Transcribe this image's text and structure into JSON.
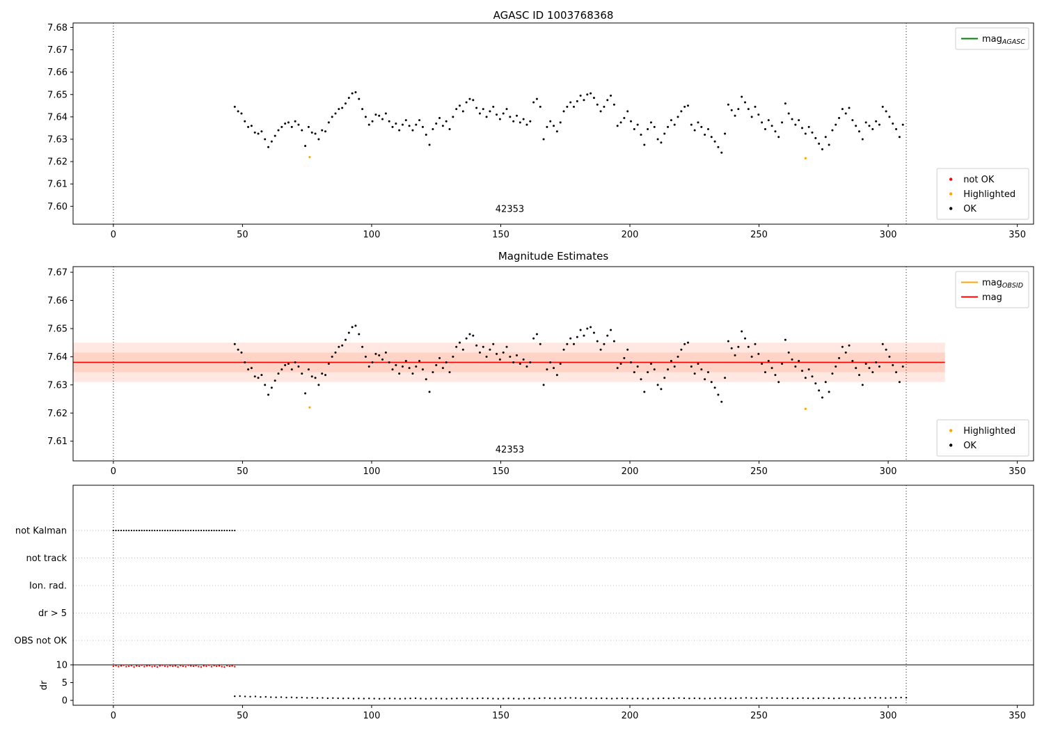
{
  "colors": {
    "ok": "#000000",
    "not_ok": "#ff0000",
    "highlighted": "#ffa500",
    "mag_agasc_line": "#008000",
    "mag_obsid_line": "#ffa500",
    "mag_line": "#ff0000",
    "band": "#ff7043",
    "vline": "#8b008b",
    "grid": "#bdbdbd"
  },
  "chart_data": [
    {
      "type": "scatter",
      "title": "AGASC ID 1003768368",
      "xlim": [
        -15.6,
        356.3
      ],
      "ylim": [
        7.592,
        7.682
      ],
      "xticks": [
        0,
        50,
        100,
        150,
        200,
        250,
        300,
        350
      ],
      "yticks": [
        "7.60",
        "7.61",
        "7.62",
        "7.63",
        "7.64",
        "7.65",
        "7.66",
        "7.67",
        "7.68"
      ],
      "vlines": [
        0,
        307
      ],
      "annotation": {
        "text": "42353",
        "x": 153.5,
        "y": 7.5975
      },
      "legend_upper": [
        {
          "marker": "line",
          "color_key": "mag_agasc_line",
          "label": "mag",
          "sub": "AGASC"
        }
      ],
      "legend_lower": [
        {
          "marker": "dot",
          "color_key": "not_ok",
          "label": "not OK"
        },
        {
          "marker": "dot",
          "color_key": "highlighted",
          "label": "Highlighted"
        },
        {
          "marker": "dot",
          "color_key": "ok",
          "label": "OK"
        }
      ],
      "series": {
        "name": "OK",
        "x_start": 47,
        "x_step": 1.3,
        "values": [
          7.6445,
          7.6425,
          7.6415,
          7.638,
          7.6355,
          7.636,
          7.633,
          7.6325,
          7.6335,
          7.63,
          7.6265,
          7.629,
          7.6315,
          7.634,
          7.6355,
          7.637,
          7.6375,
          7.6355,
          7.638,
          7.6365,
          7.634,
          7.627,
          7.6355,
          7.633,
          7.6325,
          7.63,
          7.634,
          7.6335,
          7.6375,
          7.64,
          7.6415,
          7.6435,
          7.644,
          7.646,
          7.6485,
          7.6505,
          7.651,
          7.648,
          7.6435,
          7.64,
          7.6365,
          7.638,
          7.641,
          7.6405,
          7.639,
          7.6415,
          7.638,
          7.6355,
          7.637,
          7.634,
          7.6365,
          7.6385,
          7.636,
          7.634,
          7.6365,
          7.6385,
          7.6355,
          7.632,
          7.6275,
          7.6345,
          7.637,
          7.6395,
          7.636,
          7.638,
          7.6345,
          7.64,
          7.6435,
          7.645,
          7.6425,
          7.6465,
          7.648,
          7.6475,
          7.644,
          7.6415,
          7.6435,
          7.64,
          7.6425,
          7.6445,
          7.641,
          7.639,
          7.6415,
          7.6435,
          7.64,
          7.638,
          7.6405,
          7.6375,
          7.639,
          7.6365,
          7.638,
          7.6465,
          7.648,
          7.6445,
          7.63,
          7.6355,
          7.638,
          7.636,
          7.6335,
          7.6375,
          7.6425,
          7.6445,
          7.6465,
          7.6445,
          7.647,
          7.6495,
          7.6475,
          7.65,
          7.6505,
          7.6485,
          7.6455,
          7.6425,
          7.6445,
          7.6475,
          7.6495,
          7.6455,
          7.636,
          7.6375,
          7.6395,
          7.6425,
          7.638,
          7.6345,
          7.6365,
          7.632,
          7.6275,
          7.6345,
          7.6375,
          7.6355,
          7.63,
          7.6285,
          7.6325,
          7.6355,
          7.6385,
          7.6365,
          7.64,
          7.6425,
          7.6445,
          7.645,
          7.6365,
          7.634,
          7.6375,
          7.6355,
          7.632,
          7.6345,
          7.631,
          7.629,
          7.6265,
          7.624,
          7.6325,
          7.6455,
          7.643,
          7.6405,
          7.6435,
          7.649,
          7.6465,
          7.6435,
          7.64,
          7.6445,
          7.641,
          7.6375,
          7.6345,
          7.6385,
          7.636,
          7.6335,
          7.631,
          7.6375,
          7.646,
          7.6415,
          7.639,
          7.6365,
          7.6385,
          7.635,
          7.6325,
          7.6355,
          7.633,
          7.6305,
          7.628,
          7.6255,
          7.631,
          7.6275,
          7.634,
          7.6365,
          7.6395,
          7.6435,
          7.6415,
          7.644,
          7.6385,
          7.636,
          7.6335,
          7.63,
          7.6375,
          7.636,
          7.6345,
          7.638,
          7.6365,
          7.6445,
          7.6425,
          7.64,
          7.637,
          7.6345,
          7.631,
          7.6365
        ]
      },
      "highlighted_points": [
        [
          76,
          7.622
        ],
        [
          268,
          7.6215
        ]
      ]
    },
    {
      "type": "scatter",
      "title": "Magnitude Estimates",
      "xlim": [
        -15.6,
        356.3
      ],
      "ylim": [
        7.603,
        7.672
      ],
      "xticks": [
        0,
        50,
        100,
        150,
        200,
        250,
        300,
        350
      ],
      "yticks": [
        "7.61",
        "7.62",
        "7.63",
        "7.64",
        "7.65",
        "7.66",
        "7.67"
      ],
      "vlines": [
        0,
        307
      ],
      "annotation": {
        "text": "42353",
        "x": 153.5,
        "y": 7.606
      },
      "mag_line_value": 7.638,
      "band_outer": [
        7.631,
        7.645
      ],
      "band_inner": [
        7.6345,
        7.6415
      ],
      "band_xrange": [
        -15.6,
        322
      ],
      "legend_upper": [
        {
          "marker": "line",
          "color_key": "mag_obsid_line",
          "label": "mag",
          "sub": "OBSID"
        },
        {
          "marker": "line",
          "color_key": "mag_line",
          "label": "mag"
        }
      ],
      "legend_lower": [
        {
          "marker": "dot",
          "color_key": "highlighted",
          "label": "Highlighted"
        },
        {
          "marker": "dot",
          "color_key": "ok",
          "label": "OK"
        }
      ],
      "series_from": 0,
      "highlighted_points": [
        [
          76,
          7.622
        ],
        [
          268,
          7.6215
        ]
      ]
    },
    {
      "type": "flags_dr",
      "xlim": [
        -15.6,
        356.3
      ],
      "xticks": [
        0,
        50,
        100,
        150,
        200,
        250,
        300,
        350
      ],
      "vlines": [
        0,
        307
      ],
      "categories": [
        "not Kalman",
        "not track",
        "Ion. rad.",
        "dr > 5",
        "OBS not OK"
      ],
      "dr_axis": {
        "label": "dr",
        "ticks": [
          10,
          5,
          0
        ],
        "max": 10
      },
      "flag_segments": [
        {
          "category": "not Kalman",
          "x_from": 0,
          "x_to": 47,
          "x_step": 1
        }
      ],
      "dr_red": {
        "x_start": 0,
        "x_step": 1,
        "values": [
          9.6,
          9.8,
          9.5,
          9.7,
          9.9,
          9.5,
          9.6,
          9.8,
          9.4,
          9.7,
          9.6,
          9.9,
          9.5,
          9.7,
          9.8,
          9.5,
          9.6,
          9.4,
          9.7,
          9.9,
          9.6,
          9.5,
          9.8,
          9.6,
          9.7,
          9.4,
          9.8,
          9.6,
          9.5,
          9.9,
          9.7,
          9.6,
          9.8,
          9.5,
          9.4,
          9.7,
          9.6,
          9.9,
          9.5,
          9.8,
          9.6,
          9.7,
          9.5,
          9.4,
          9.8,
          9.6,
          9.7,
          9.5
        ]
      },
      "dr_black": {
        "x_start": 47,
        "x_step": 2,
        "values": [
          1.15,
          1.2,
          1.1,
          1.05,
          1.1,
          0.95,
          1.0,
          0.9,
          0.85,
          0.9,
          0.8,
          0.85,
          0.75,
          0.8,
          0.7,
          0.75,
          0.65,
          0.7,
          0.6,
          0.65,
          0.6,
          0.55,
          0.6,
          0.5,
          0.55,
          0.5,
          0.55,
          0.5,
          0.45,
          0.5,
          0.55,
          0.5,
          0.45,
          0.5,
          0.55,
          0.6,
          0.5,
          0.45,
          0.5,
          0.55,
          0.5,
          0.45,
          0.5,
          0.55,
          0.6,
          0.55,
          0.5,
          0.55,
          0.6,
          0.55,
          0.5,
          0.45,
          0.5,
          0.55,
          0.5,
          0.45,
          0.5,
          0.55,
          0.5,
          0.6,
          0.65,
          0.6,
          0.55,
          0.6,
          0.65,
          0.7,
          0.65,
          0.6,
          0.65,
          0.6,
          0.55,
          0.6,
          0.55,
          0.5,
          0.55,
          0.6,
          0.55,
          0.5,
          0.55,
          0.5,
          0.45,
          0.5,
          0.55,
          0.6,
          0.55,
          0.6,
          0.65,
          0.6,
          0.55,
          0.6,
          0.55,
          0.5,
          0.55,
          0.6,
          0.65,
          0.6,
          0.55,
          0.6,
          0.65,
          0.7,
          0.65,
          0.6,
          0.65,
          0.7,
          0.65,
          0.6,
          0.65,
          0.6,
          0.55,
          0.6,
          0.65,
          0.6,
          0.55,
          0.6,
          0.65,
          0.6,
          0.55,
          0.6,
          0.65,
          0.6,
          0.55,
          0.6,
          0.65,
          0.7,
          0.75,
          0.7,
          0.65,
          0.7,
          0.75,
          0.8,
          0.75
        ]
      }
    }
  ]
}
